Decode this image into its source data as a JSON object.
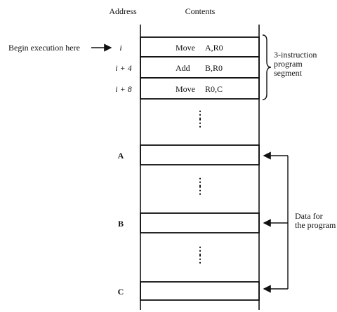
{
  "headers": {
    "address": "Address",
    "contents": "Contents"
  },
  "begin_label": "Begin execution here",
  "instructions": [
    {
      "address": "i",
      "op": "Move",
      "operands": "A,R0"
    },
    {
      "address": "i + 4",
      "op": "Add",
      "operands": "B,R0"
    },
    {
      "address": "i + 8",
      "op": "Move",
      "operands": "R0,C"
    }
  ],
  "data_addresses": [
    "A",
    "B",
    "C"
  ],
  "segment_note": [
    "3-instruction",
    "program",
    "segment"
  ],
  "data_note": [
    "Data for",
    "the program"
  ],
  "ellipsis": "⋮",
  "colors": {
    "line": "#111111",
    "text": "#111111",
    "bg": "#ffffff"
  }
}
